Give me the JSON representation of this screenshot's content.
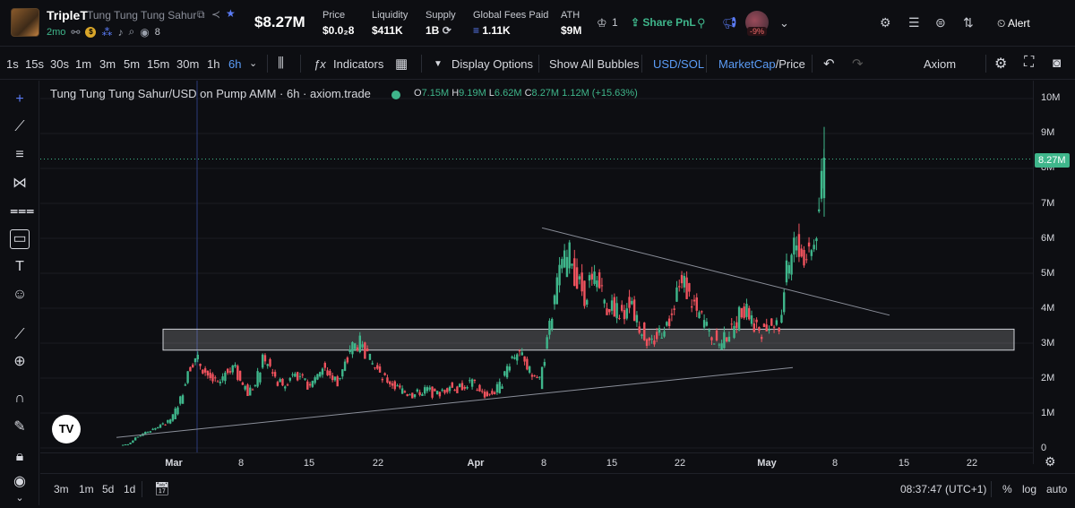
{
  "header": {
    "token_symbol": "TripleT",
    "token_name": "Tung Tung Tung Sahur",
    "age": "2mo",
    "holders_count": "8",
    "market_cap": "$8.27M",
    "stats": [
      {
        "label": "Price",
        "value": "$0.0₂8"
      },
      {
        "label": "Liquidity",
        "value": "$411K"
      },
      {
        "label": "Supply",
        "value": "1B"
      },
      {
        "label": "Global Fees Paid",
        "value": "1.11K"
      },
      {
        "label": "ATH",
        "value": "$9M"
      }
    ],
    "crown_count": "1",
    "share_label": "Share PnL",
    "avatar_change": "-9%",
    "alert_label": "Alert"
  },
  "toolbar": {
    "timeframes": [
      "1s",
      "15s",
      "30s",
      "1m",
      "3m",
      "5m",
      "15m",
      "30m",
      "1h",
      "6h"
    ],
    "active_timeframe": "6h",
    "indicators_label": "Indicators",
    "display_options_label": "Display Options",
    "show_bubbles_label": "Show All Bubbles",
    "pair_label": "USD/SOL",
    "metric_label_a": "MarketCap",
    "metric_label_b": "/Price",
    "provider": "Axiom"
  },
  "legend": {
    "title": "Tung Tung Tung Sahur/USD on Pump AMM · 6h · axiom.trade",
    "o_label": "O",
    "o_value": "7.15M",
    "h_label": "H",
    "h_value": "9.19M",
    "l_label": "L",
    "l_value": "6.62M",
    "c_label": "C",
    "c_value": "8.27M",
    "change": "1.12M (+15.63%)"
  },
  "y_axis": [
    "10M",
    "9M",
    "8M",
    "7M",
    "6M",
    "5M",
    "4M",
    "3M",
    "2M",
    "1M",
    "0"
  ],
  "current_price_tag": "8.27M",
  "x_axis": [
    "Mar",
    "8",
    "15",
    "22",
    "Apr",
    "8",
    "15",
    "22",
    "May",
    "8",
    "15",
    "22"
  ],
  "bottom": {
    "ranges": [
      "3m",
      "1m",
      "5d",
      "1d"
    ],
    "time": "08:37:47 (UTC+1)",
    "percent_label": "%",
    "log_label": "log",
    "auto_label": "auto"
  },
  "chart_data": {
    "type": "candlestick",
    "title": "Tung Tung Tung Sahur/USD on Pump AMM · 6h · axiom.trade",
    "ylim": [
      0,
      10.5
    ],
    "y_unit": "M",
    "x_ticks": [
      "Mar",
      "8",
      "15",
      "22",
      "Apr",
      "8",
      "15",
      "22",
      "May",
      "8",
      "15",
      "22"
    ],
    "close_series_approx": [
      0.1,
      0.3,
      0.4,
      0.5,
      0.6,
      0.7,
      0.9,
      1.4,
      2.2,
      2.6,
      2.3,
      2.0,
      1.8,
      2.2,
      2.4,
      1.9,
      1.6,
      1.8,
      2.5,
      2.3,
      1.9,
      1.8,
      2.2,
      2.0,
      1.8,
      2.1,
      2.3,
      2.1,
      1.9,
      2.4,
      2.9,
      3.0,
      2.6,
      2.3,
      2.0,
      1.9,
      1.7,
      1.6,
      1.5,
      1.6,
      1.7,
      1.5,
      1.6,
      1.8,
      1.7,
      1.8,
      1.9,
      1.6,
      1.5,
      1.6,
      1.9,
      2.5,
      2.8,
      2.4,
      2.1,
      1.9,
      3.0,
      4.3,
      5.2,
      5.5,
      4.8,
      4.4,
      5.0,
      4.6,
      4.1,
      4.0,
      3.8,
      4.2,
      3.6,
      3.2,
      3.0,
      3.3,
      3.6,
      4.2,
      4.9,
      4.3,
      3.9,
      3.6,
      3.2,
      3.0,
      3.2,
      3.5,
      4.0,
      3.8,
      3.5,
      3.3,
      3.6,
      3.5,
      5.0,
      6.0,
      5.6,
      5.4,
      6.2,
      8.27
    ],
    "support_zone": [
      2.8,
      3.4
    ],
    "trendlines": [
      {
        "from": [
          0.1,
          0.3
        ],
        "to": [
          0.85,
          2.3
        ]
      },
      {
        "from": [
          0.53,
          6.3
        ],
        "to": [
          0.92,
          3.8
        ]
      }
    ],
    "last": {
      "open": 7.15,
      "high": 9.19,
      "low": 6.62,
      "close": 8.27
    }
  }
}
